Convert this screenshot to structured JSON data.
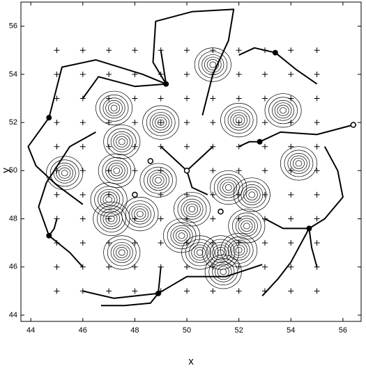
{
  "chart_data": {
    "type": "contour",
    "x_label": "x",
    "y_label": "y",
    "xlim": [
      43.62,
      56.7
    ],
    "ylim": [
      43.74,
      57.0
    ],
    "xticks": [
      44,
      46,
      48,
      50,
      52,
      54,
      56
    ],
    "yticks": [
      44,
      46,
      48,
      50,
      52,
      54,
      56
    ],
    "grid": false,
    "grid_points": {
      "x": [
        45,
        46,
        47,
        48,
        49,
        50,
        51,
        52,
        53,
        54,
        55
      ],
      "y": [
        45,
        46,
        47,
        48,
        49,
        50,
        51,
        52,
        53,
        54,
        55
      ]
    },
    "peaks": {
      "x": [
        51.0,
        47.2,
        49.0,
        52.0,
        53.7,
        47.5,
        45.3,
        47.3,
        48.9,
        54.3,
        51.6,
        52.5,
        47.0,
        48.2,
        50.2,
        47.1,
        49.8,
        50.5,
        51.3,
        52.0,
        52.3,
        47.5,
        51.4
      ],
      "y": [
        54.4,
        52.6,
        52.0,
        52.1,
        52.5,
        51.2,
        49.9,
        50.0,
        49.6,
        50.3,
        49.3,
        49.0,
        48.8,
        48.2,
        48.4,
        48.0,
        47.3,
        46.6,
        46.6,
        46.7,
        47.7,
        46.6,
        45.8
      ]
    },
    "contour_radii": [
      0.12,
      0.22,
      0.32,
      0.42,
      0.55,
      0.7
    ],
    "sinks": {
      "x": [
        49.2,
        44.7,
        44.7,
        48.9,
        54.7,
        53.4,
        52.8
      ],
      "y": [
        53.6,
        52.2,
        47.3,
        44.9,
        47.6,
        54.9,
        51.2
      ]
    },
    "saddles": {
      "x": [
        50.0,
        56.4,
        48.6,
        48.0,
        51.3
      ],
      "y": [
        50.0,
        51.9,
        50.4,
        49.0,
        48.3
      ]
    },
    "trajectories": [
      {
        "x": [
          44.7,
          45.2,
          46.5,
          48.3,
          49.2
        ],
        "y": [
          52.2,
          54.3,
          54.6,
          54.0,
          53.6
        ]
      },
      {
        "x": [
          46,
          46.6,
          48.0,
          49.2
        ],
        "y": [
          53,
          53.9,
          53.5,
          53.6
        ]
      },
      {
        "x": [
          49,
          49.1,
          49.2
        ],
        "y": [
          55,
          54.3,
          53.6
        ]
      },
      {
        "x": [
          49.2,
          48.7,
          48.8,
          50.2,
          51.8,
          51.6,
          51.0,
          50.6
        ],
        "y": [
          53.6,
          54.5,
          56.2,
          56.6,
          56.7,
          55.4,
          54.0,
          52.3
        ]
      },
      {
        "x": [
          44.7,
          43.9,
          44.2,
          45.0,
          46.0
        ],
        "y": [
          52.2,
          51.0,
          50.2,
          49.4,
          48.6
        ]
      },
      {
        "x": [
          45,
          44.9,
          44.7
        ],
        "y": [
          48,
          47.6,
          47.3
        ]
      },
      {
        "x": [
          46,
          45.5,
          44.7
        ],
        "y": [
          46,
          46.6,
          47.3
        ]
      },
      {
        "x": [
          44.7,
          44.3,
          44.6,
          45.5,
          46.5
        ],
        "y": [
          47.3,
          48.5,
          49.5,
          51.0,
          51.6
        ]
      },
      {
        "x": [
          46,
          47.2,
          48.9
        ],
        "y": [
          45,
          44.7,
          44.9
        ]
      },
      {
        "x": [
          48.9,
          48.6,
          47.6,
          46.7
        ],
        "y": [
          44.9,
          44.5,
          44.4,
          44.4
        ]
      },
      {
        "x": [
          48.9,
          50.0,
          51.5,
          52.9
        ],
        "y": [
          44.9,
          45.6,
          45.6,
          46.1
        ]
      },
      {
        "x": [
          49,
          48.9
        ],
        "y": [
          46,
          44.9
        ]
      },
      {
        "x": [
          53,
          53.7,
          54.7
        ],
        "y": [
          48,
          47.6,
          47.6
        ]
      },
      {
        "x": [
          55,
          54.8,
          54.7
        ],
        "y": [
          46,
          46.8,
          47.6
        ]
      },
      {
        "x": [
          54.7,
          55.3,
          56.0,
          55.8,
          55.3
        ],
        "y": [
          47.6,
          48.0,
          48.9,
          50.0,
          51.0
        ]
      },
      {
        "x": [
          52.9,
          53.5,
          54.0,
          54.7
        ],
        "y": [
          44.8,
          45.5,
          46.2,
          47.6
        ]
      },
      {
        "x": [
          52,
          52.6,
          53.4
        ],
        "y": [
          54.8,
          55.1,
          54.9
        ]
      },
      {
        "x": [
          53.4,
          54.2,
          55.0
        ],
        "y": [
          54.9,
          54.2,
          53.6
        ]
      },
      {
        "x": [
          52,
          52.4,
          52.8
        ],
        "y": [
          51,
          51.2,
          51.2
        ]
      },
      {
        "x": [
          52.8,
          53.6,
          55.0,
          56.4
        ],
        "y": [
          51.2,
          51.6,
          51.5,
          51.9
        ]
      },
      {
        "x": [
          49,
          49.5,
          50
        ],
        "y": [
          51,
          50.5,
          50
        ]
      },
      {
        "x": [
          51,
          50.5,
          50
        ],
        "y": [
          51,
          50.5,
          50
        ]
      },
      {
        "x": [
          50,
          50.2,
          50.8
        ],
        "y": [
          50,
          49.3,
          49.0
        ]
      }
    ]
  }
}
